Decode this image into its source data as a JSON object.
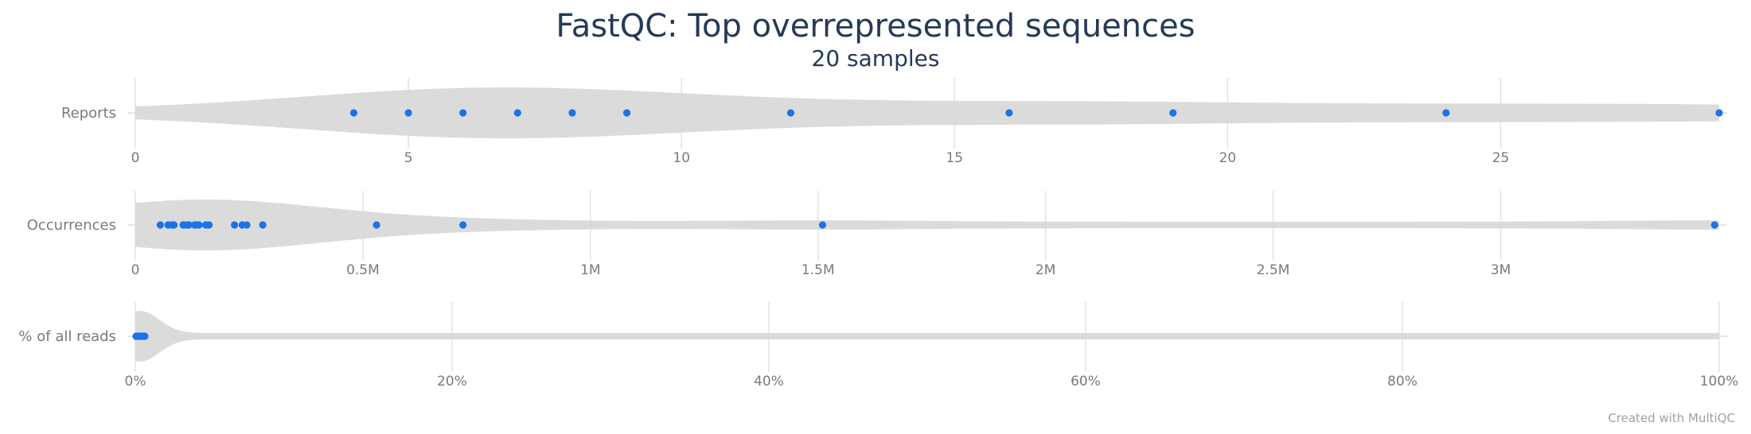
{
  "title": "FastQC: Top overrepresented sequences",
  "subtitle": "20 samples",
  "credit": "Created with MultiQC",
  "colors": {
    "point": "#1a73e8",
    "violin": "#d9d9d9",
    "grid": "#e3e3e3",
    "axis_text": "#7a7a7a",
    "title": "#263a56"
  },
  "chart_data": [
    {
      "type": "violin",
      "label": "Reports",
      "xlim": [
        0,
        29
      ],
      "ticks": [
        0,
        5,
        10,
        15,
        20,
        25
      ],
      "tick_labels": [
        "0",
        "5",
        "10",
        "15",
        "20",
        "25"
      ],
      "values": [
        4,
        5,
        6,
        7,
        8,
        9,
        12,
        16,
        19,
        24,
        29
      ]
    },
    {
      "type": "violin",
      "label": "Occurrences",
      "xlim": [
        0,
        3480000
      ],
      "ticks": [
        0,
        500000,
        1000000,
        1500000,
        2000000,
        2500000,
        3000000
      ],
      "tick_labels": [
        "0",
        "0.5M",
        "1M",
        "1.5M",
        "2M",
        "2.5M",
        "3M"
      ],
      "values": [
        55000,
        72000,
        80000,
        85000,
        105000,
        112000,
        118000,
        130000,
        135000,
        140000,
        155000,
        162000,
        218000,
        235000,
        245000,
        280000,
        530000,
        720000,
        1510000,
        3470000
      ]
    },
    {
      "type": "violin",
      "label": "% of all reads",
      "xlim": [
        0,
        100
      ],
      "ticks": [
        0,
        20,
        40,
        60,
        80,
        100
      ],
      "tick_labels": [
        "0%",
        "20%",
        "40%",
        "60%",
        "80%",
        "100%"
      ],
      "values": [
        0.05,
        0.1,
        0.15,
        0.2,
        0.25,
        0.3,
        0.35,
        0.4,
        0.5,
        0.6
      ]
    }
  ]
}
